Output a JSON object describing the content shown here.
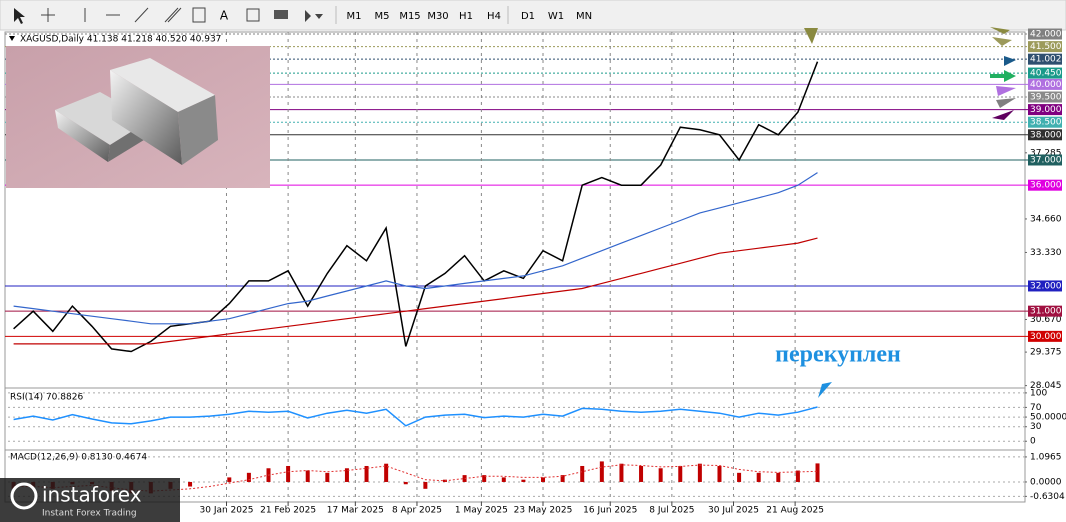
{
  "toolbar": {
    "text_tool": "A",
    "timeframes": [
      "M1",
      "M5",
      "M15",
      "M30",
      "H1",
      "H4",
      "D1",
      "W1",
      "MN"
    ]
  },
  "watermark": {
    "brand": "instaforex",
    "slogan": "Instant Forex Trading"
  },
  "chart_data": [
    {
      "type": "line",
      "title": "XAGUSD,Daily  41.138 41.218 40.520 40.937",
      "annotation": "перекуплен",
      "x": [
        "2024-11-15",
        "2024-11-22",
        "2024-11-29",
        "2024-12-06",
        "2024-12-13",
        "2024-12-20",
        "2024-12-27",
        "2025-01-03",
        "2025-01-10",
        "2025-01-17",
        "2025-01-24",
        "2025-01-31",
        "2025-02-07",
        "2025-02-14",
        "2025-02-21",
        "2025-02-28",
        "2025-03-07",
        "2025-03-14",
        "2025-03-21",
        "2025-03-28",
        "2025-04-04",
        "2025-04-11",
        "2025-04-18",
        "2025-04-25",
        "2025-05-02",
        "2025-05-09",
        "2025-05-16",
        "2025-05-23",
        "2025-05-30",
        "2025-06-06",
        "2025-06-13",
        "2025-06-20",
        "2025-06-27",
        "2025-07-04",
        "2025-07-11",
        "2025-07-18",
        "2025-07-25",
        "2025-08-01",
        "2025-08-08",
        "2025-08-15",
        "2025-08-22",
        "2025-08-29"
      ],
      "series": [
        {
          "color": "#000000",
          "values": [
            30.3,
            31.0,
            30.2,
            31.2,
            30.4,
            29.5,
            29.4,
            29.8,
            30.4,
            30.5,
            30.6,
            31.3,
            32.2,
            32.2,
            32.6,
            31.2,
            32.5,
            33.6,
            33.0,
            34.3,
            29.6,
            32.0,
            32.5,
            33.2,
            32.2,
            32.6,
            32.3,
            33.4,
            33.0,
            36.0,
            36.3,
            36.0,
            36.0,
            36.8,
            38.3,
            38.2,
            38.0,
            37.0,
            38.4,
            38.0,
            38.9,
            40.9
          ]
        },
        {
          "color": "#3366cc",
          "values": [
            31.2,
            31.1,
            31.0,
            30.9,
            30.8,
            30.7,
            30.6,
            30.5,
            30.5,
            30.5,
            30.6,
            30.7,
            30.9,
            31.1,
            31.3,
            31.4,
            31.6,
            31.8,
            32.0,
            32.2,
            32.0,
            31.9,
            32.0,
            32.1,
            32.2,
            32.3,
            32.4,
            32.6,
            32.8,
            33.1,
            33.4,
            33.7,
            34.0,
            34.3,
            34.6,
            34.9,
            35.1,
            35.3,
            35.5,
            35.7,
            36.0,
            36.5
          ]
        },
        {
          "color": "#c00000",
          "values": [
            29.7,
            29.7,
            29.7,
            29.7,
            29.7,
            29.7,
            29.7,
            29.7,
            29.8,
            29.9,
            30.0,
            30.1,
            30.2,
            30.3,
            30.4,
            30.5,
            30.6,
            30.7,
            30.8,
            30.9,
            31.0,
            31.1,
            31.2,
            31.3,
            31.4,
            31.5,
            31.6,
            31.7,
            31.8,
            31.9,
            32.1,
            32.3,
            32.5,
            32.7,
            32.9,
            33.1,
            33.3,
            33.4,
            33.5,
            33.6,
            33.7,
            33.9
          ]
        }
      ],
      "xlim": [
        "2024-11-13",
        "2025-11-10"
      ],
      "xticks": [
        {
          "value": "2025-01-30",
          "label": "30 Jan 2025"
        },
        {
          "value": "2025-02-21",
          "label": "21 Feb 2025"
        },
        {
          "value": "2025-03-17",
          "label": "17 Mar 2025"
        },
        {
          "value": "2025-04-08",
          "label": "8 Apr 2025"
        },
        {
          "value": "2025-05-01",
          "label": "1 May 2025"
        },
        {
          "value": "2025-05-23",
          "label": "23 May 2025"
        },
        {
          "value": "2025-06-16",
          "label": "16 Jun 2025"
        },
        {
          "value": "2025-07-08",
          "label": "8 Jul 2025"
        },
        {
          "value": "2025-07-30",
          "label": "30 Jul 2025"
        },
        {
          "value": "2025-08-21",
          "label": "21 Aug 2025"
        }
      ],
      "ylim": [
        27.95,
        42.08
      ],
      "yticks": [
        37.285,
        {
          "value": 34.66,
          "label": "34.660"
        },
        {
          "value": 33.33,
          "label": "33.330"
        },
        {
          "value": 30.67,
          "label": "30.670"
        },
        29.375,
        28.045
      ],
      "levels": [
        {
          "value": 42,
          "label": "42.000",
          "color": "#808080",
          "style": "dotted"
        },
        {
          "value": 41.5,
          "label": "41.500",
          "color": "#9c9a5a",
          "style": "dotted"
        },
        {
          "value": 41.002,
          "label": "41.002",
          "color": "#2f4f6f",
          "style": "dotted"
        },
        {
          "value": 40.45,
          "label": "40.450",
          "color": "#1a9a8a",
          "style": "dotted"
        },
        {
          "value": 40,
          "label": "40.000",
          "color": "#b070e0",
          "style": "solid"
        },
        {
          "value": 39.5,
          "label": "39.500",
          "color": "#8a8a8a",
          "style": "dotted"
        },
        {
          "value": 39,
          "label": "39.000",
          "color": "#800080",
          "style": "solid"
        },
        {
          "value": 38.5,
          "label": "38.500",
          "color": "#40b0b0",
          "style": "dotted"
        },
        {
          "value": 38,
          "label": "38.000",
          "color": "#303030",
          "style": "solid"
        },
        {
          "value": 37,
          "label": "37.000",
          "color": "#206060",
          "style": "solid"
        },
        {
          "value": 36,
          "label": "36.000",
          "color": "#e000e0",
          "style": "solid"
        },
        {
          "value": 32,
          "label": "32.000",
          "color": "#2020c0",
          "style": "solid"
        },
        {
          "value": 31,
          "label": "31.000",
          "color": "#a01040",
          "style": "solid"
        },
        {
          "value": 30,
          "label": "30.000",
          "color": "#d00000",
          "style": "solid"
        }
      ],
      "grid": true
    },
    {
      "type": "line",
      "title": "RSI(14) 70.8826",
      "x": [
        "2024-11-15",
        "2024-11-22",
        "2024-11-29",
        "2024-12-06",
        "2024-12-13",
        "2024-12-20",
        "2024-12-27",
        "2025-01-03",
        "2025-01-10",
        "2025-01-17",
        "2025-01-24",
        "2025-01-31",
        "2025-02-07",
        "2025-02-14",
        "2025-02-21",
        "2025-02-28",
        "2025-03-07",
        "2025-03-14",
        "2025-03-21",
        "2025-03-28",
        "2025-04-04",
        "2025-04-11",
        "2025-04-18",
        "2025-04-25",
        "2025-05-02",
        "2025-05-09",
        "2025-05-16",
        "2025-05-23",
        "2025-05-30",
        "2025-06-06",
        "2025-06-13",
        "2025-06-20",
        "2025-06-27",
        "2025-07-04",
        "2025-07-11",
        "2025-07-18",
        "2025-07-25",
        "2025-08-01",
        "2025-08-08",
        "2025-08-15",
        "2025-08-22",
        "2025-08-29"
      ],
      "series": [
        {
          "color": "#1e90ff",
          "values": [
            45,
            52,
            44,
            55,
            46,
            38,
            36,
            42,
            50,
            50,
            52,
            56,
            62,
            60,
            62,
            48,
            58,
            64,
            58,
            66,
            32,
            50,
            54,
            56,
            49,
            52,
            50,
            56,
            52,
            68,
            66,
            62,
            60,
            62,
            66,
            62,
            58,
            50,
            58,
            54,
            60,
            70.8826
          ]
        }
      ],
      "ylim": [
        -14,
        106
      ],
      "yticks": [
        100,
        70,
        {
          "value": 50,
          "label": "50.0000"
        },
        30,
        0
      ]
    },
    {
      "type": "bar",
      "title": "MACD(12,26,9) 0.8130 0.4674",
      "x": [
        "2024-11-15",
        "2024-11-22",
        "2024-11-29",
        "2024-12-06",
        "2024-12-13",
        "2024-12-20",
        "2024-12-27",
        "2025-01-03",
        "2025-01-10",
        "2025-01-17",
        "2025-01-24",
        "2025-01-31",
        "2025-02-07",
        "2025-02-14",
        "2025-02-21",
        "2025-02-28",
        "2025-03-07",
        "2025-03-14",
        "2025-03-21",
        "2025-03-28",
        "2025-04-04",
        "2025-04-11",
        "2025-04-18",
        "2025-04-25",
        "2025-05-02",
        "2025-05-09",
        "2025-05-16",
        "2025-05-23",
        "2025-05-30",
        "2025-06-06",
        "2025-06-13",
        "2025-06-20",
        "2025-06-27",
        "2025-07-04",
        "2025-07-11",
        "2025-07-18",
        "2025-07-25",
        "2025-08-01",
        "2025-08-08",
        "2025-08-15",
        "2025-08-22",
        "2025-08-29"
      ],
      "values": [
        -0.3,
        -0.2,
        -0.3,
        -0.1,
        -0.1,
        -0.4,
        -0.5,
        -0.5,
        -0.3,
        -0.2,
        0,
        0.2,
        0.4,
        0.6,
        0.7,
        0.5,
        0.4,
        0.6,
        0.7,
        0.8,
        -0.1,
        -0.3,
        0.1,
        0.3,
        0.3,
        0.2,
        0.1,
        0.2,
        0.3,
        0.7,
        0.9,
        0.8,
        0.7,
        0.6,
        0.7,
        0.8,
        0.7,
        0.4,
        0.4,
        0.4,
        0.5,
        0.813
      ],
      "color": "#c00000",
      "signal": {
        "color": "#e03030",
        "values": [
          -0.2,
          -0.2,
          -0.25,
          -0.2,
          -0.15,
          -0.25,
          -0.35,
          -0.4,
          -0.35,
          -0.3,
          -0.2,
          -0.05,
          0.1,
          0.3,
          0.45,
          0.5,
          0.45,
          0.5,
          0.6,
          0.7,
          0.4,
          0.1,
          0.05,
          0.15,
          0.25,
          0.25,
          0.2,
          0.2,
          0.25,
          0.45,
          0.65,
          0.75,
          0.72,
          0.66,
          0.68,
          0.74,
          0.72,
          0.55,
          0.45,
          0.42,
          0.44,
          0.4674
        ]
      },
      "ylim": [
        -0.79,
        1.4
      ],
      "yticks": [
        1.0965,
        {
          "value": 0,
          "label": "0.0000"
        },
        -0.6304
      ]
    }
  ]
}
